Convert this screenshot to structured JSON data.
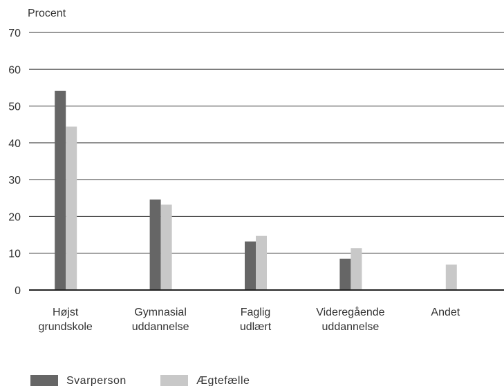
{
  "chart_data": {
    "type": "bar",
    "ylabel": "Procent",
    "ylim": [
      0,
      70
    ],
    "yticks": [
      0,
      10,
      20,
      30,
      40,
      50,
      60,
      70
    ],
    "grid": true,
    "legend_position": "bottom-left",
    "categories": [
      [
        "Højst",
        "grundskole"
      ],
      [
        "Gymnasial",
        "uddannelse"
      ],
      [
        "Faglig",
        "udlært"
      ],
      [
        "Videregående",
        "uddannelse"
      ],
      [
        "Andet"
      ]
    ],
    "series": [
      {
        "name": "Svarperson",
        "color": "#666666",
        "values": [
          54.1,
          24.6,
          13.2,
          8.5,
          0
        ]
      },
      {
        "name": "Ægtefælle",
        "color": "#c8c8c8",
        "values": [
          44.4,
          23.2,
          14.7,
          11.4,
          6.9
        ]
      }
    ]
  }
}
